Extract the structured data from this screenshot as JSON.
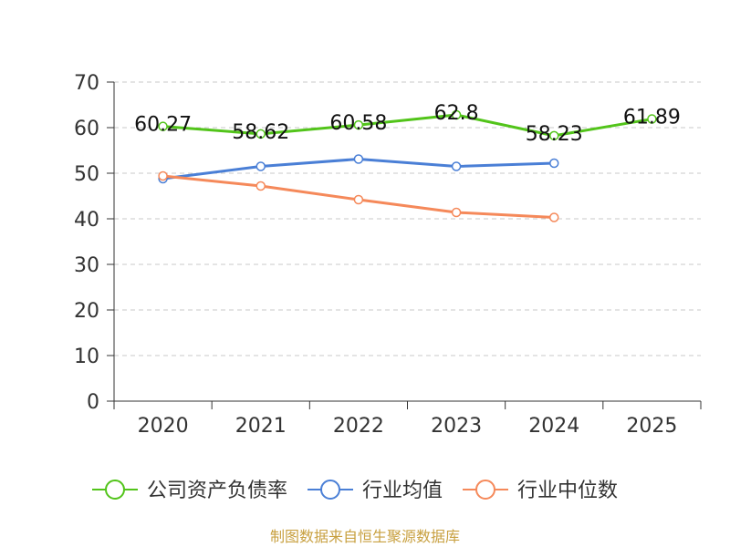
{
  "chart_data": {
    "type": "line",
    "title": "",
    "xlabel": "",
    "ylabel": "",
    "categories": [
      "2020",
      "2021",
      "2022",
      "2023",
      "2024",
      "2025"
    ],
    "y_ticks": [
      "0",
      "10",
      "20",
      "30",
      "40",
      "50",
      "60",
      "70"
    ],
    "ylim": [
      0,
      70
    ],
    "grid": true,
    "legend_position": "bottom",
    "series": [
      {
        "name": "公司资产负债率",
        "color": "#52c41a",
        "values": [
          60.27,
          58.62,
          60.58,
          62.8,
          58.23,
          61.89
        ],
        "labels": [
          "60.27",
          "58.62",
          "60.58",
          "62.8",
          "58.23",
          "61.89"
        ]
      },
      {
        "name": "行业均值",
        "color": "#4a7fd6",
        "values": [
          48.8,
          51.5,
          53.1,
          51.5,
          52.2,
          null
        ]
      },
      {
        "name": "行业中位数",
        "color": "#f5895a",
        "values": [
          49.4,
          47.2,
          44.2,
          41.4,
          40.3,
          null
        ]
      }
    ]
  },
  "footer": "制图数据来自恒生聚源数据库"
}
